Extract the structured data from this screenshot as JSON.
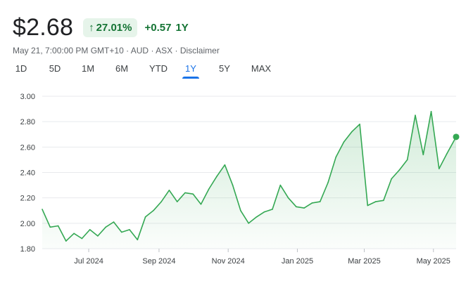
{
  "quote": {
    "price": "$2.68",
    "percent_change": "27.01%",
    "abs_change": "+0.57",
    "period": "1Y",
    "up_arrow_icon": "arrow-up-icon",
    "accent_green": "#137333",
    "badge_bg": "#e6f4ea"
  },
  "meta": {
    "timestamp": "May 21, 7:00:00 PM GMT+10",
    "currency": "AUD",
    "exchange": "ASX",
    "disclaimer": "Disclaimer",
    "separator": " · "
  },
  "tabs": [
    {
      "label": "1D"
    },
    {
      "label": "5D"
    },
    {
      "label": "1M"
    },
    {
      "label": "6M"
    },
    {
      "label": "YTD"
    },
    {
      "label": "1Y",
      "active": true
    },
    {
      "label": "5Y"
    },
    {
      "label": "MAX"
    }
  ],
  "chart_data": {
    "type": "area",
    "line_color": "#34a853",
    "grid": true,
    "ylim": [
      1.8,
      3.0
    ],
    "yticks": [
      "3.00",
      "2.80",
      "2.60",
      "2.40",
      "2.20",
      "2.00",
      "1.80"
    ],
    "xticks": [
      {
        "label": "Jul 2024",
        "date": "2024-07-01"
      },
      {
        "label": "Sep 2024",
        "date": "2024-09-01"
      },
      {
        "label": "Nov 2024",
        "date": "2024-11-01"
      },
      {
        "label": "Jan 2025",
        "date": "2025-01-01"
      },
      {
        "label": "Mar 2025",
        "date": "2025-03-01"
      },
      {
        "label": "May 2025",
        "date": "2025-05-01"
      }
    ],
    "series": [
      {
        "x": [
          "2024-05-21",
          "2024-05-28",
          "2024-06-04",
          "2024-06-11",
          "2024-06-18",
          "2024-06-25",
          "2024-07-02",
          "2024-07-09",
          "2024-07-16",
          "2024-07-23",
          "2024-07-30",
          "2024-08-06",
          "2024-08-13",
          "2024-08-20",
          "2024-08-27",
          "2024-09-03",
          "2024-09-10",
          "2024-09-17",
          "2024-09-24",
          "2024-10-01",
          "2024-10-08",
          "2024-10-15",
          "2024-10-22",
          "2024-10-29",
          "2024-11-05",
          "2024-11-12",
          "2024-11-19",
          "2024-11-26",
          "2024-12-03",
          "2024-12-10",
          "2024-12-17",
          "2024-12-24",
          "2024-12-31",
          "2025-01-07",
          "2025-01-14",
          "2025-01-21",
          "2025-01-28",
          "2025-02-04",
          "2025-02-11",
          "2025-02-18",
          "2025-02-25",
          "2025-03-04",
          "2025-03-11",
          "2025-03-18",
          "2025-03-25",
          "2025-04-01",
          "2025-04-08",
          "2025-04-15",
          "2025-04-22",
          "2025-04-29",
          "2025-05-06",
          "2025-05-13",
          "2025-05-21"
        ],
        "values": [
          2.11,
          1.97,
          1.98,
          1.86,
          1.92,
          1.88,
          1.95,
          1.9,
          1.97,
          2.01,
          1.93,
          1.95,
          1.87,
          2.05,
          2.1,
          2.17,
          2.26,
          2.17,
          2.24,
          2.23,
          2.15,
          2.27,
          2.37,
          2.46,
          2.3,
          2.1,
          2.0,
          2.05,
          2.09,
          2.11,
          2.3,
          2.2,
          2.13,
          2.12,
          2.16,
          2.17,
          2.32,
          2.52,
          2.64,
          2.72,
          2.78,
          2.14,
          2.17,
          2.18,
          2.35,
          2.42,
          2.5,
          2.85,
          2.54,
          2.88,
          2.43,
          2.55,
          2.68
        ]
      }
    ]
  }
}
